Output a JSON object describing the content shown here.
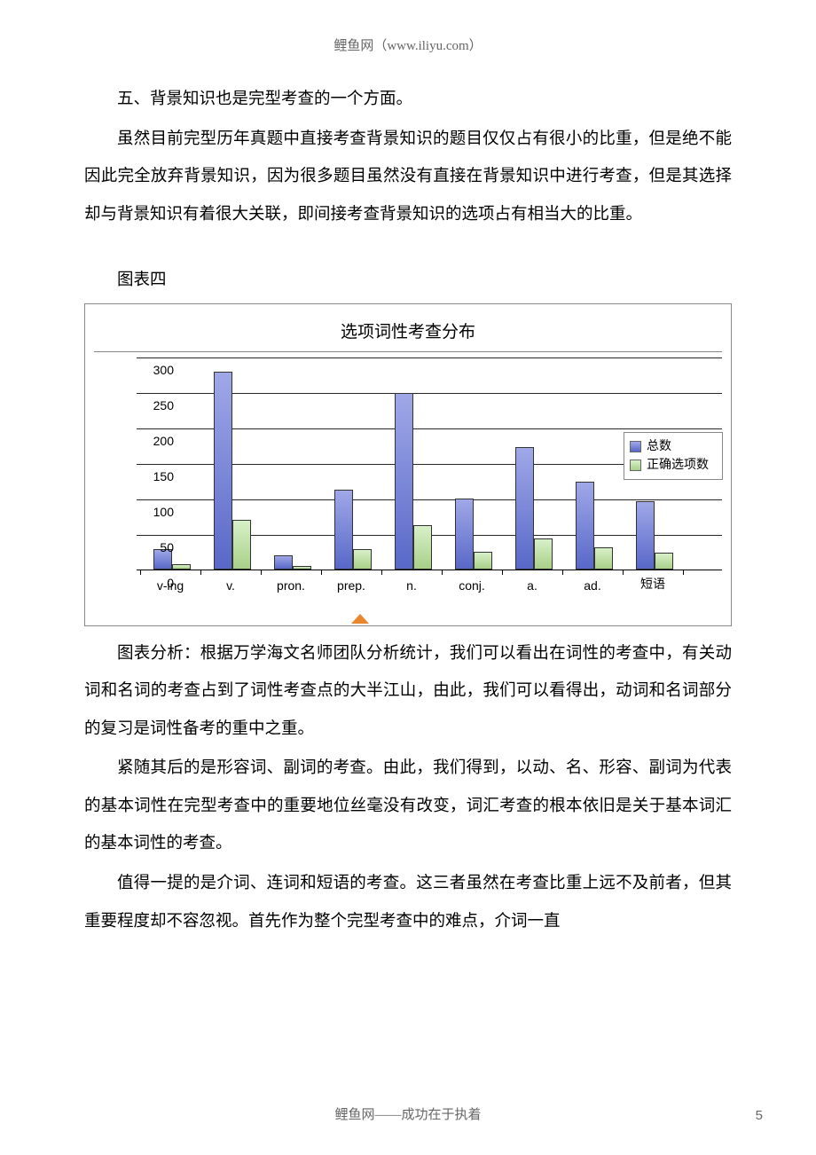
{
  "header": {
    "text": "鲤鱼网（www.iliyu.com）"
  },
  "paragraphs": {
    "p1": "五、背景知识也是完型考查的一个方面。",
    "p2": "虽然目前完型历年真题中直接考查背景知识的题目仅仅占有很小的比重，但是绝不能因此完全放弃背景知识，因为很多题目虽然没有直接在背景知识中进行考查，但是其选择却与背景知识有着很大关联，即间接考查背景知识的选项占有相当大的比重。",
    "caption": "图表四",
    "p3": "图表分析：根据万学海文名师团队分析统计，我们可以看出在词性的考查中，有关动词和名词的考查占到了词性考查点的大半江山，由此，我们可以看得出，动词和名词部分的复习是词性备考的重中之重。",
    "p4": "紧随其后的是形容词、副词的考查。由此，我们得到，以动、名、形容、副词为代表的基本词性在完型考查中的重要地位丝毫没有改变，词汇考查的根本依旧是关于基本词汇的基本词性的考查。",
    "p5": "值得一提的是介词、连词和短语的考查。这三者虽然在考查比重上远不及前者，但其重要程度却不容忽视。首先作为整个完型考查中的难点，介词一直"
  },
  "chart": {
    "title": "选项词性考查分布",
    "ylim": [
      0,
      300
    ],
    "ytick_step": 50,
    "yticks": [
      0,
      50,
      100,
      150,
      200,
      250,
      300
    ],
    "categories": [
      "v-ing",
      "v.",
      "pron.",
      "prep.",
      "n.",
      "conj.",
      "a.",
      "ad.",
      "短语"
    ],
    "series": [
      {
        "name": "总数",
        "color_top": "#a0a8e8",
        "color_bottom": "#5868c8",
        "values": [
          28,
          278,
          20,
          112,
          248,
          100,
          172,
          124,
          96
        ]
      },
      {
        "name": "正确选项数",
        "color_top": "#d8f0c8",
        "color_bottom": "#a8d088",
        "values": [
          7,
          70,
          5,
          28,
          62,
          25,
          43,
          31,
          24
        ]
      }
    ],
    "legend_labels": [
      "总数",
      "正确选项数"
    ],
    "background": "#ffffff",
    "grid_color": "#000000",
    "axis_fontsize": 14,
    "title_fontsize": 19
  },
  "footer": {
    "text": "鲤鱼网——成功在于执着",
    "page": "5"
  }
}
